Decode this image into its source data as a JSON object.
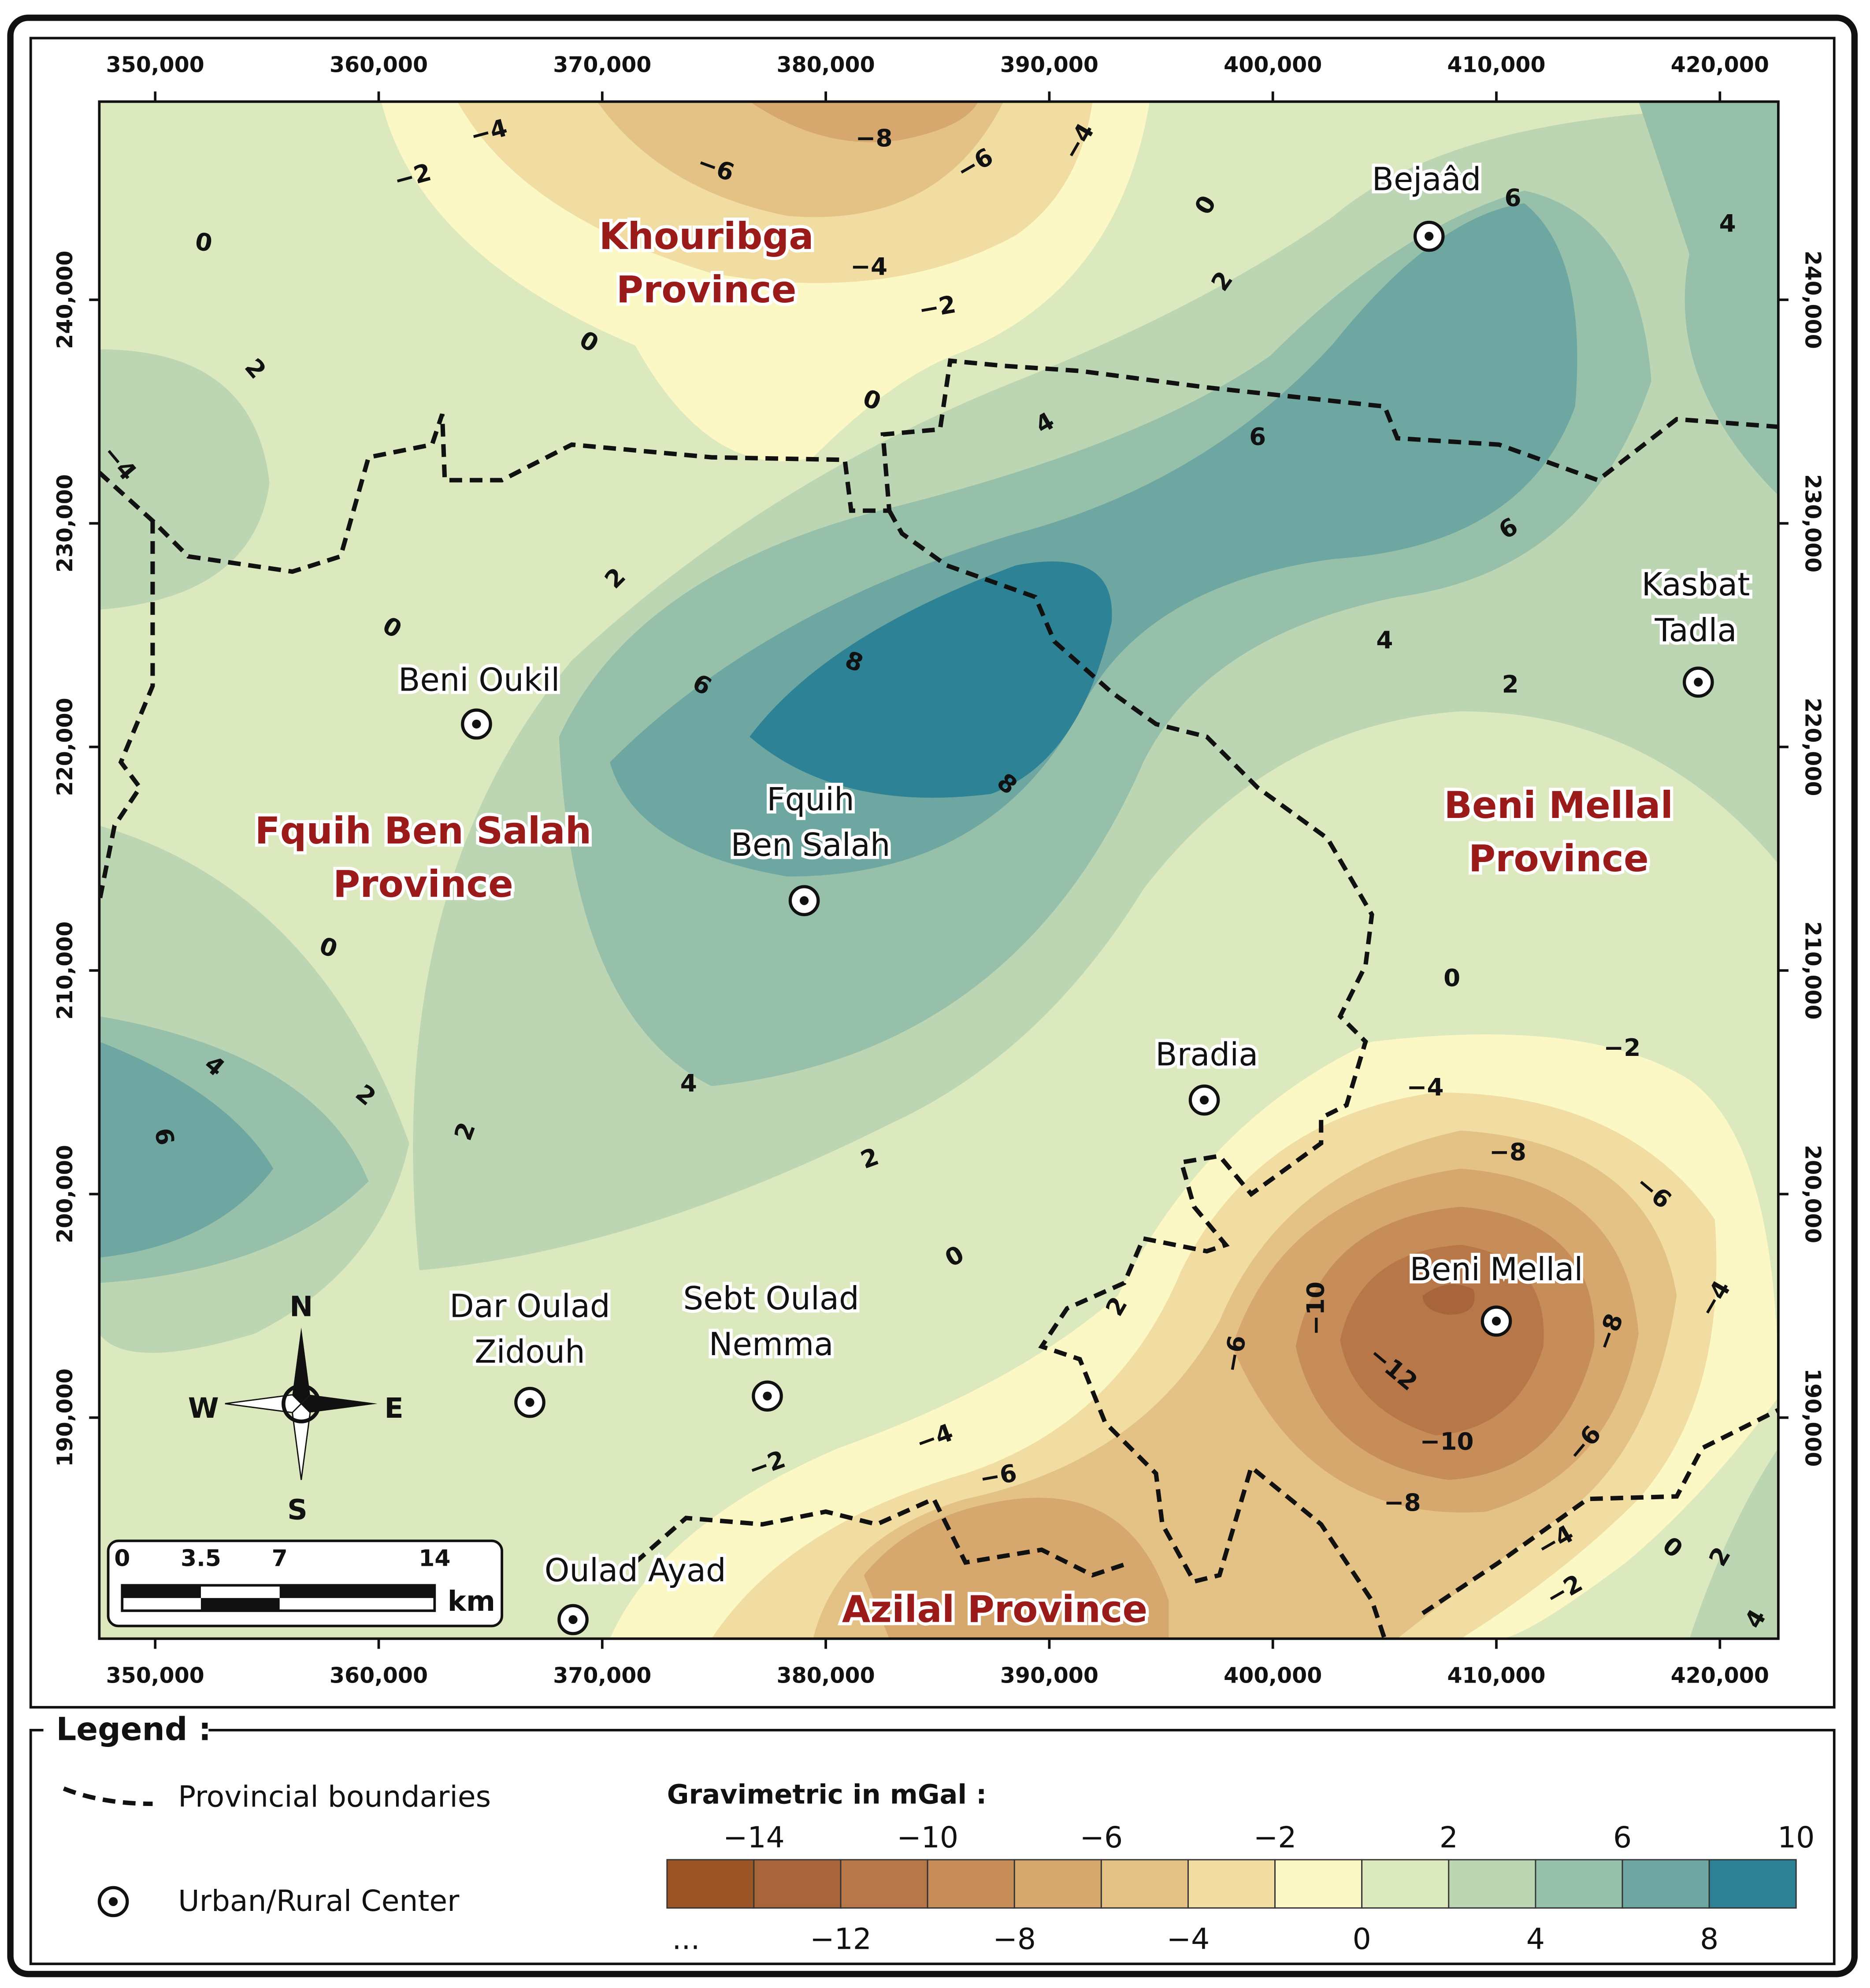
{
  "axes": {
    "x_ticks": [
      "350,000",
      "360,000",
      "370,000",
      "380,000",
      "390,000",
      "400,000",
      "410,000",
      "420,000"
    ],
    "y_ticks": [
      "240,000",
      "230,000",
      "220,000",
      "210,000",
      "200,000",
      "190,000"
    ]
  },
  "provinces": [
    {
      "lines": [
        "Khouribga",
        "Province"
      ]
    },
    {
      "lines": [
        "Fquih Ben Salah",
        "Province"
      ]
    },
    {
      "lines": [
        "Beni Mellal",
        "Province"
      ]
    },
    {
      "lines": [
        "Azilal Province"
      ]
    }
  ],
  "centers": [
    {
      "lines": [
        "Bejaâd"
      ]
    },
    {
      "lines": [
        "Kasbat",
        "Tadla"
      ]
    },
    {
      "lines": [
        "Beni Oukil"
      ]
    },
    {
      "lines": [
        "Fquih",
        "Ben Salah"
      ]
    },
    {
      "lines": [
        "Bradia"
      ]
    },
    {
      "lines": [
        "Beni Mellal"
      ]
    },
    {
      "lines": [
        "Dar Oulad",
        "Zidouh"
      ]
    },
    {
      "lines": [
        "Sebt Oulad",
        "Nemma"
      ]
    },
    {
      "lines": [
        "Oulad Ayad"
      ]
    }
  ],
  "contour_labels": [
    "−4",
    "−2",
    "−8",
    "−6",
    "−6",
    "−4",
    "0",
    "0",
    "6",
    "4",
    "−4",
    "−2",
    "2",
    "0",
    "2",
    "0",
    "4",
    "6",
    "−4",
    "6",
    "2",
    "0",
    "4",
    "2",
    "6",
    "8",
    "8",
    "0",
    "0",
    "−2",
    "4",
    "2",
    "4",
    "−4",
    "6",
    "2",
    "−8",
    "2",
    "−6",
    "0",
    "−10",
    "−4",
    "2",
    "−8",
    "−6",
    "−12",
    "−4",
    "−10",
    "−6",
    "−2",
    "−6",
    "−8",
    "−4",
    "0",
    "2",
    "−2",
    "4"
  ],
  "compass": [
    "N",
    "E",
    "S",
    "W"
  ],
  "scale_bar": {
    "ticks": [
      "0",
      "3.5",
      "7",
      "14"
    ],
    "unit": "km"
  },
  "legend": {
    "title": "Legend :",
    "items": [
      "Provincial boundaries",
      "Urban/Rural Center"
    ],
    "colorbar": {
      "title": "Gravimetric in mGal :",
      "top_labels": [
        "−14",
        "−10",
        "−6",
        "−2",
        "2",
        "6",
        "10"
      ],
      "bottom_labels": [
        "...",
        "−12",
        "−8",
        "−4",
        "0",
        "4",
        "8"
      ],
      "colors": [
        "#9a5426",
        "#a8643a",
        "#b87749",
        "#c78d59",
        "#d6a86d",
        "#e4c286",
        "#f1dca1",
        "#fcf8c6",
        "#dce8bd",
        "#bcd6b3",
        "#96c0aa",
        "#6ea7a2",
        "#2d8295"
      ]
    }
  }
}
